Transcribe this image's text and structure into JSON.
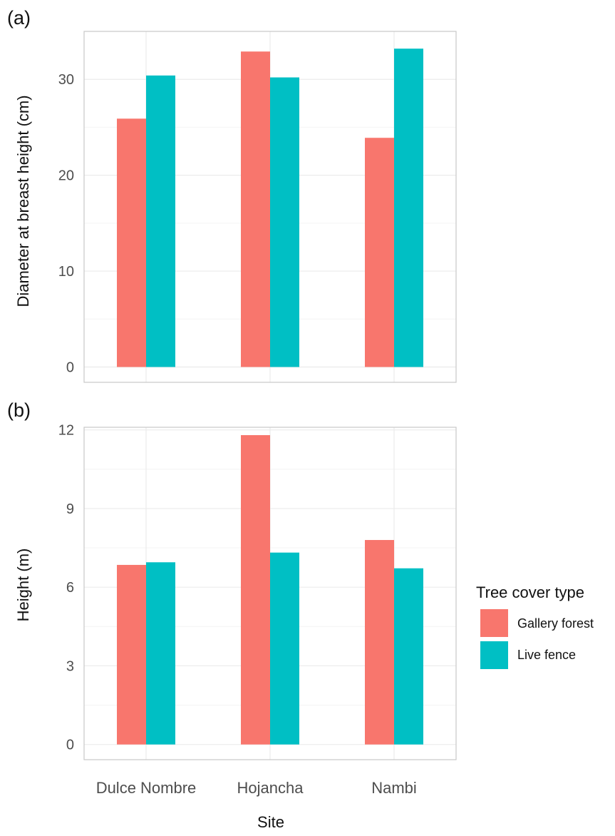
{
  "chart_data": [
    {
      "type": "bar",
      "panel_label": "(a)",
      "categories": [
        "Dulce Nombre",
        "Hojancha",
        "Nambi"
      ],
      "series": [
        {
          "name": "Gallery forest",
          "values": [
            25.9,
            32.9,
            23.9
          ]
        },
        {
          "name": "Live fence",
          "values": [
            30.4,
            30.2,
            33.2
          ]
        }
      ],
      "ylabel": "Diameter at breast height (cm)",
      "yticks": [
        0,
        10,
        20,
        30
      ],
      "ylim": [
        -1.6,
        35
      ],
      "grid": true
    },
    {
      "type": "bar",
      "panel_label": "(b)",
      "categories": [
        "Dulce Nombre",
        "Hojancha",
        "Nambi"
      ],
      "series": [
        {
          "name": "Gallery forest",
          "values": [
            6.85,
            11.8,
            7.8
          ]
        },
        {
          "name": "Live fence",
          "values": [
            6.95,
            7.32,
            6.72
          ]
        }
      ],
      "xlabel": "Site",
      "ylabel": "Height (m)",
      "yticks": [
        0,
        3,
        6,
        9,
        12
      ],
      "ylim": [
        -0.58,
        12.1
      ],
      "grid": true
    }
  ],
  "legend": {
    "title": "Tree cover type",
    "placement": "right",
    "entries": [
      {
        "label": "Gallery forest",
        "color": "#F8766D"
      },
      {
        "label": "Live fence",
        "color": "#00BFC4"
      }
    ]
  },
  "colors": {
    "gallery_forest": "#F8766D",
    "live_fence": "#00BFC4",
    "grid_major": "#ebebeb",
    "grid_minor": "#f4f4f4",
    "panel_border": "#c8c8c8"
  }
}
